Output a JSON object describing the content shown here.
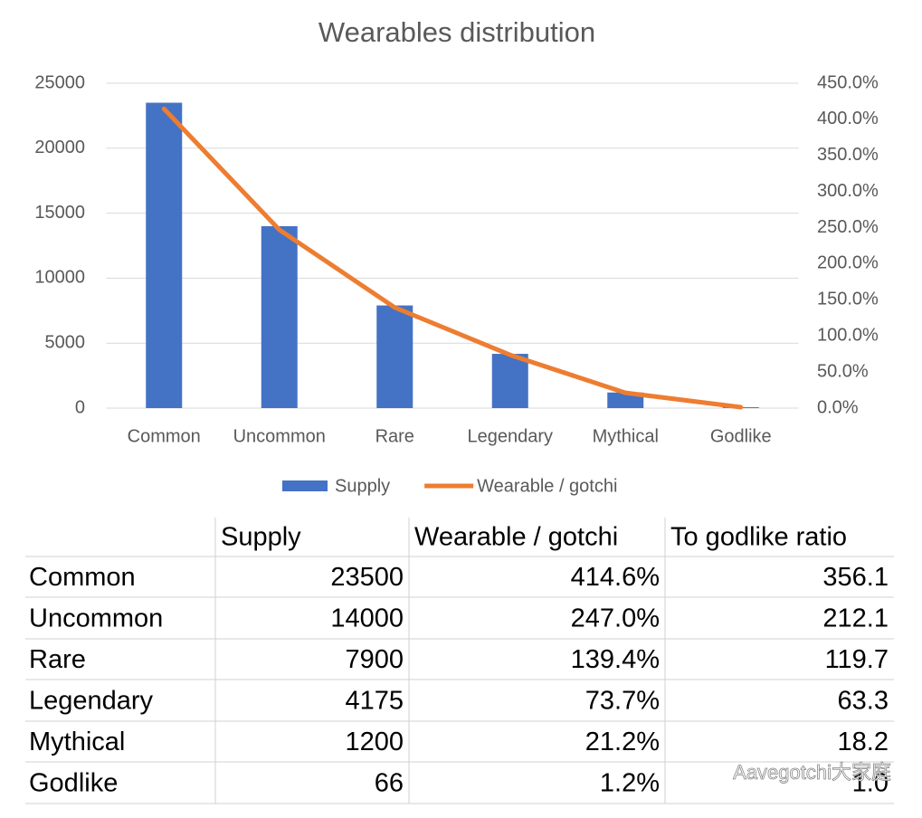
{
  "chart_data": {
    "type": "bar",
    "title": "Wearables distribution",
    "categories": [
      "Common",
      "Uncommon",
      "Rare",
      "Legendary",
      "Mythical",
      "Godlike"
    ],
    "series": [
      {
        "name": "Supply",
        "type": "bar",
        "color": "#4472c4",
        "values": [
          23500,
          14000,
          7900,
          4175,
          1200,
          66
        ]
      },
      {
        "name": "Wearable / gotchi",
        "type": "line",
        "axis": "y2",
        "color": "#ed7d31",
        "values": [
          414.6,
          247.0,
          139.4,
          73.7,
          21.2,
          1.2
        ]
      }
    ],
    "ylim": [
      0,
      25000
    ],
    "yticks": [
      0,
      5000,
      10000,
      15000,
      20000,
      25000
    ],
    "y2lim": [
      0,
      450
    ],
    "y2ticks": [
      {
        "value": 0,
        "label": "0.0%"
      },
      {
        "value": 50,
        "label": "50.0%"
      },
      {
        "value": 100,
        "label": "100.0%"
      },
      {
        "value": 150,
        "label": "150.0%"
      },
      {
        "value": 200,
        "label": "200.0%"
      },
      {
        "value": 250,
        "label": "250.0%"
      },
      {
        "value": 300,
        "label": "300.0%"
      },
      {
        "value": 350,
        "label": "350.0%"
      },
      {
        "value": 400,
        "label": "400.0%"
      },
      {
        "value": 450,
        "label": "450.0%"
      }
    ],
    "grid": true,
    "legend": "bottom"
  },
  "table": {
    "headers": [
      "Supply",
      "Wearable / gotchi",
      "To godlike ratio"
    ],
    "rows": [
      [
        "Common",
        "23500",
        "414.6%",
        "356.1"
      ],
      [
        "Uncommon",
        "14000",
        "247.0%",
        "212.1"
      ],
      [
        "Rare",
        "7900",
        "139.4%",
        "119.7"
      ],
      [
        "Legendary",
        "4175",
        "73.7%",
        "63.3"
      ],
      [
        "Mythical",
        "1200",
        "21.2%",
        "18.2"
      ],
      [
        "Godlike",
        "66",
        "1.2%",
        "1.0"
      ]
    ]
  },
  "watermark": "Aavegotchi大家庭"
}
